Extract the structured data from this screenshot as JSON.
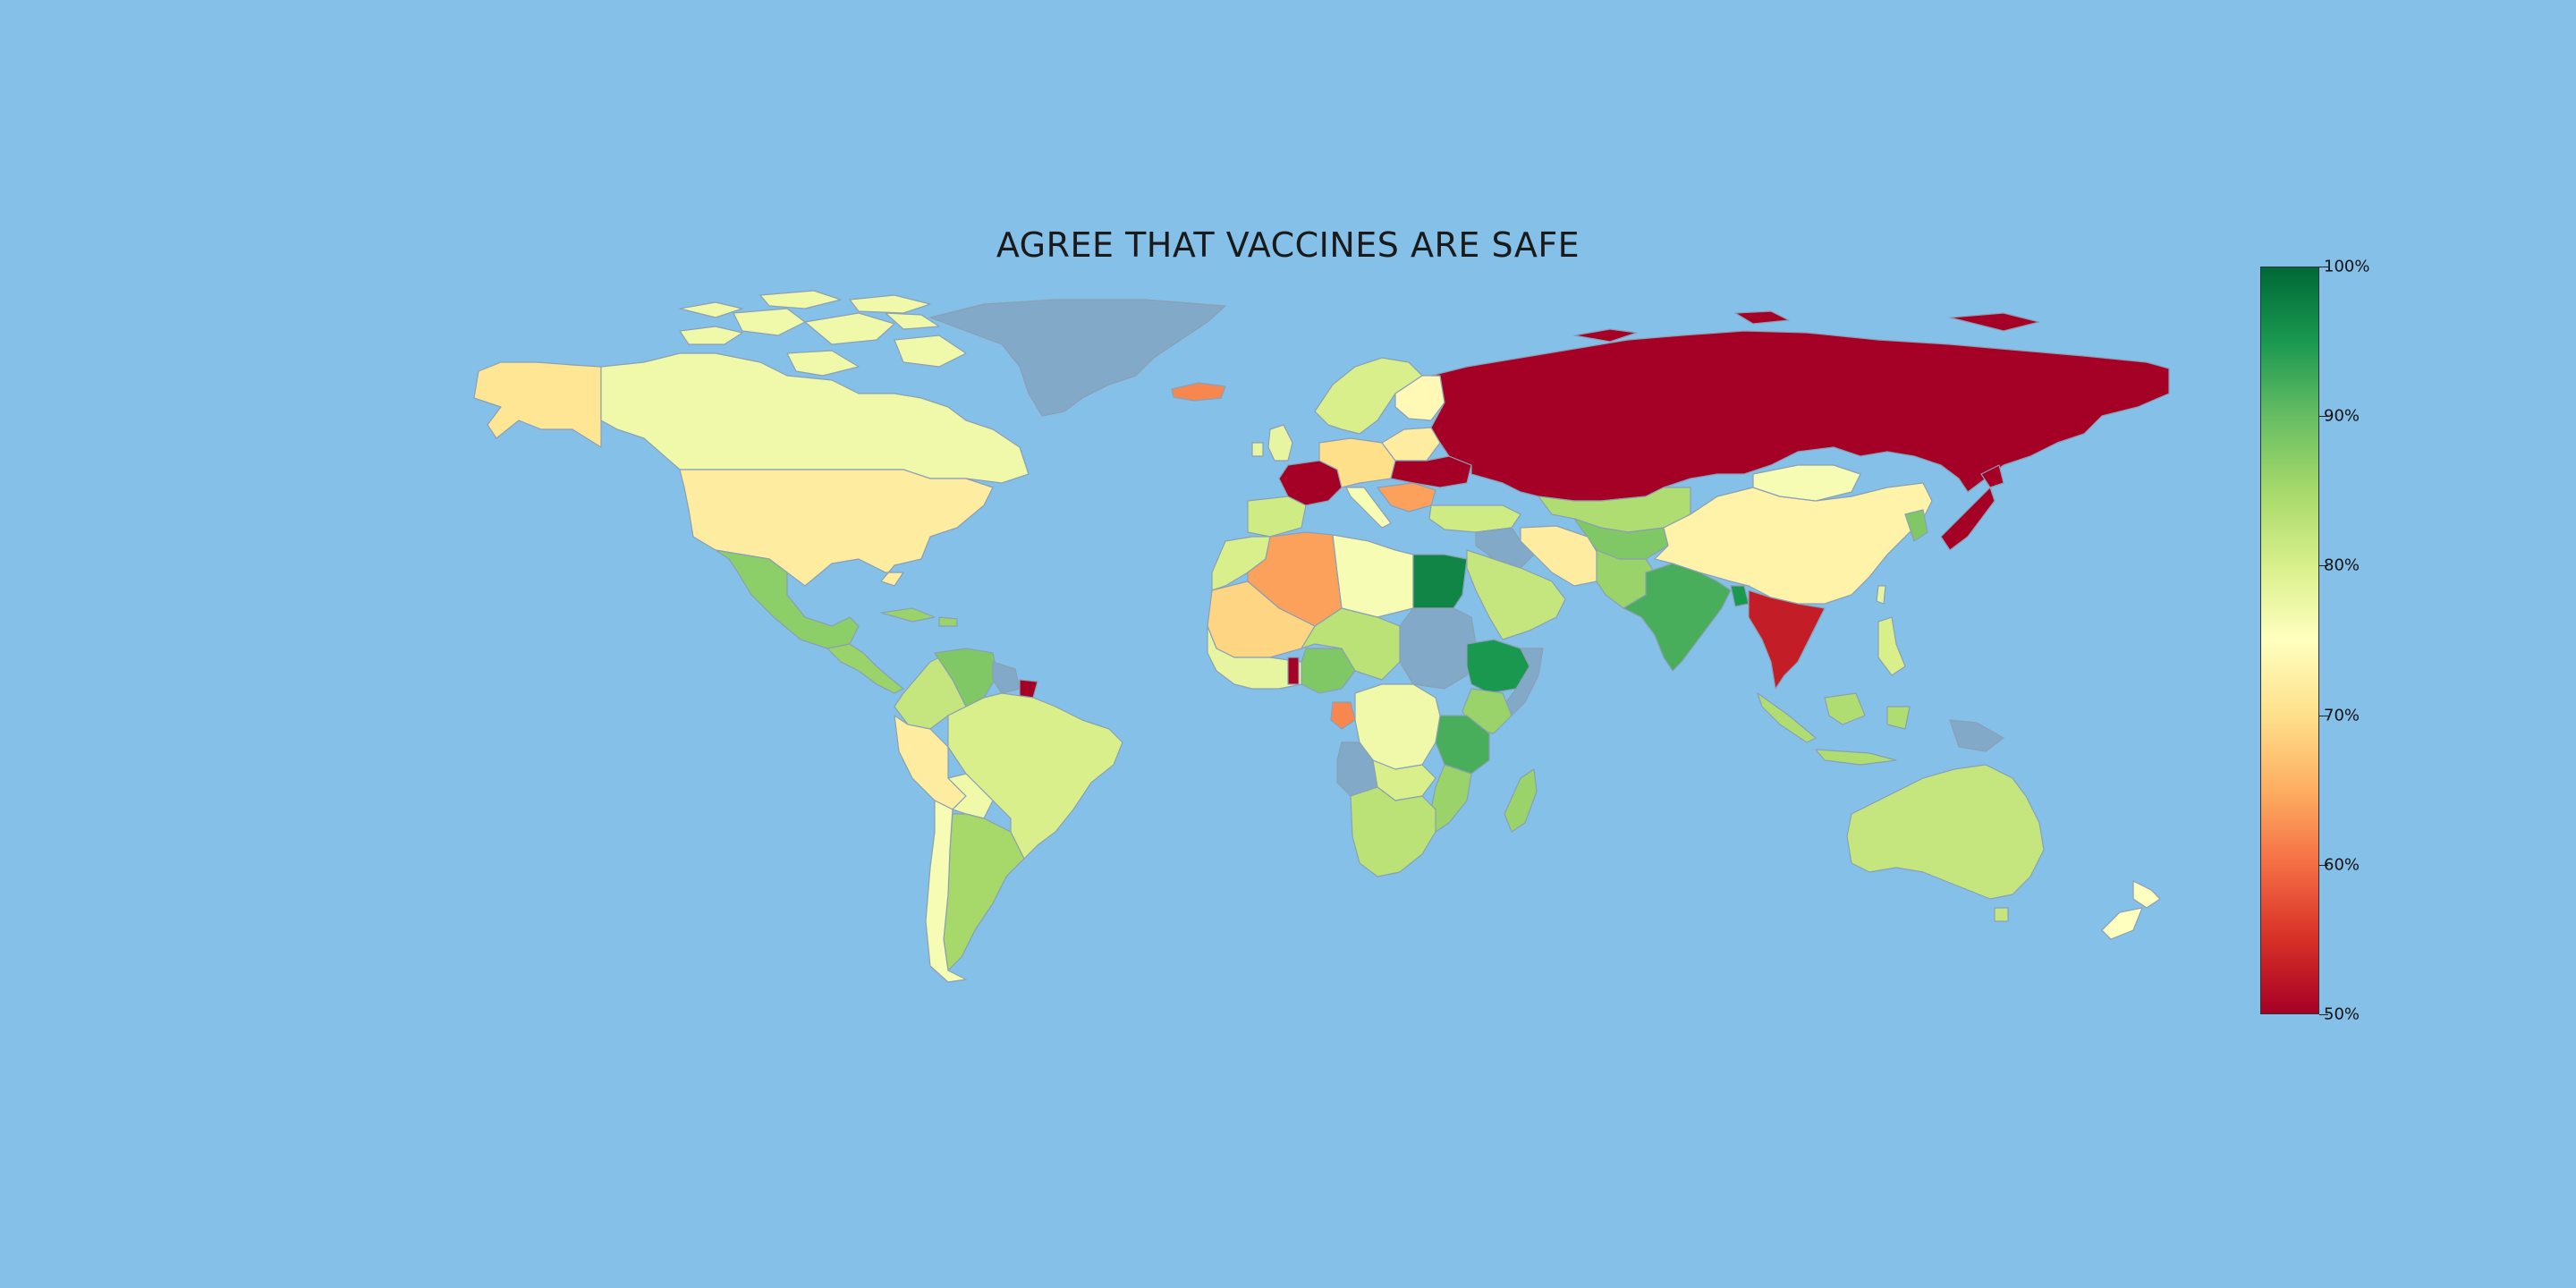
{
  "map": {
    "title": "AGREE THAT VACCINES ARE SAFE",
    "background_color": "#85c0e8",
    "no_data_color": "#82a9c7",
    "border_color": "#8aa0b4",
    "projection": "equirectangular"
  },
  "legend": {
    "type": "colorbar",
    "placement": "right",
    "min": 50,
    "max": 100,
    "unit": "%",
    "colormap": "RdYlGn",
    "ticks": [
      {
        "value": 100,
        "label": "100%"
      },
      {
        "value": 90,
        "label": "90%"
      },
      {
        "value": 80,
        "label": "80%"
      },
      {
        "value": 70,
        "label": "70%"
      },
      {
        "value": 60,
        "label": "60%"
      },
      {
        "value": 50,
        "label": "50%"
      }
    ]
  },
  "regions": [
    {
      "name": "Alaska (US)",
      "value": 71
    },
    {
      "name": "Canada",
      "value": 77
    },
    {
      "name": "United States",
      "value": 72
    },
    {
      "name": "Mexico",
      "value": 87
    },
    {
      "name": "Central America",
      "value": 86
    },
    {
      "name": "Greenland",
      "value": null
    },
    {
      "name": "Iceland",
      "value": 62
    },
    {
      "name": "Colombia",
      "value": 82
    },
    {
      "name": "Venezuela",
      "value": 88
    },
    {
      "name": "Peru",
      "value": 72
    },
    {
      "name": "Brazil",
      "value": 80
    },
    {
      "name": "Bolivia",
      "value": 77
    },
    {
      "name": "Argentina",
      "value": 85
    },
    {
      "name": "Chile",
      "value": 76
    },
    {
      "name": "French Guiana",
      "value": 50
    },
    {
      "name": "Guyana/Suriname",
      "value": null
    },
    {
      "name": "France",
      "value": 50
    },
    {
      "name": "Spain",
      "value": 81
    },
    {
      "name": "UK & Ireland",
      "value": 78
    },
    {
      "name": "Germany/Central Europe",
      "value": 70
    },
    {
      "name": "Italy",
      "value": 76
    },
    {
      "name": "Scandinavia",
      "value": 80
    },
    {
      "name": "Finland",
      "value": 74
    },
    {
      "name": "Baltics",
      "value": 72
    },
    {
      "name": "Ukraine",
      "value": 50
    },
    {
      "name": "Balkans",
      "value": 64
    },
    {
      "name": "Russia",
      "value": 50
    },
    {
      "name": "Turkey",
      "value": 81
    },
    {
      "name": "Kazakhstan",
      "value": 84
    },
    {
      "name": "Central Asia",
      "value": 88
    },
    {
      "name": "Iran",
      "value": 72
    },
    {
      "name": "Saudi Arabia",
      "value": 82
    },
    {
      "name": "Iraq/Syria",
      "value": null
    },
    {
      "name": "Afghanistan/Pakistan",
      "value": 86
    },
    {
      "name": "India",
      "value": 92
    },
    {
      "name": "Bangladesh",
      "value": 95
    },
    {
      "name": "China",
      "value": 73
    },
    {
      "name": "Mongolia",
      "value": 76
    },
    {
      "name": "Southeast Asia",
      "value": 88
    },
    {
      "name": "Japan",
      "value": 50
    },
    {
      "name": "Korea",
      "value": 78
    },
    {
      "name": "Taiwan",
      "value": 53
    },
    {
      "name": "Philippines",
      "value": 80
    },
    {
      "name": "Indonesia",
      "value": 84
    },
    {
      "name": "Papua New Guinea",
      "value": null
    },
    {
      "name": "Australia",
      "value": 82
    },
    {
      "name": "New Zealand",
      "value": 75
    },
    {
      "name": "Morocco",
      "value": 80
    },
    {
      "name": "Algeria",
      "value": 64
    },
    {
      "name": "Mali/Mauritania",
      "value": 69
    },
    {
      "name": "Libya",
      "value": 76
    },
    {
      "name": "Egypt",
      "value": 97
    },
    {
      "name": "Sudan",
      "value": null
    },
    {
      "name": "Chad/Niger",
      "value": 83
    },
    {
      "name": "Nigeria",
      "value": 88
    },
    {
      "name": "West Africa",
      "value": 78
    },
    {
      "name": "Ghana",
      "value": 50
    },
    {
      "name": "Ethiopia",
      "value": 95
    },
    {
      "name": "Somalia",
      "value": null
    },
    {
      "name": "Kenya",
      "value": 86
    },
    {
      "name": "Tanzania",
      "value": 92
    },
    {
      "name": "Gabon",
      "value": 62
    },
    {
      "name": "DR Congo",
      "value": 77
    },
    {
      "name": "Angola",
      "value": null
    },
    {
      "name": "Zambia",
      "value": 80
    },
    {
      "name": "Mozambique",
      "value": 86
    },
    {
      "name": "Southern Africa",
      "value": 83
    },
    {
      "name": "Madagascar",
      "value": 86
    }
  ]
}
